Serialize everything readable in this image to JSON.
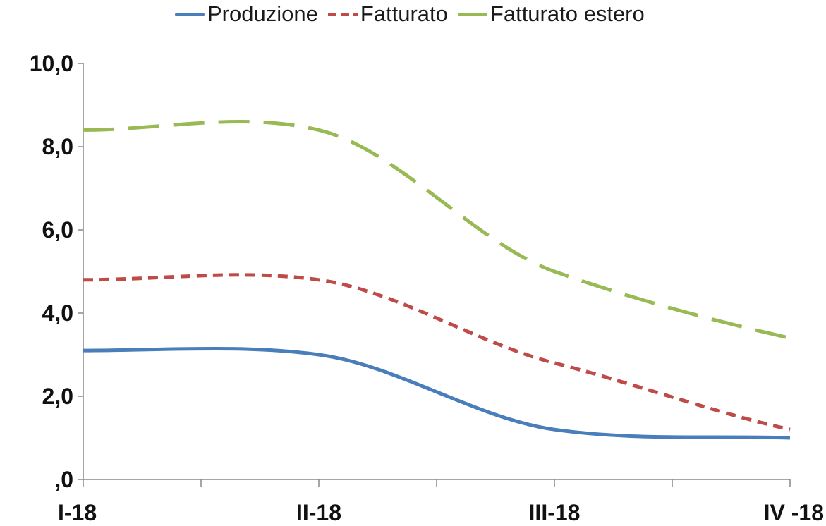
{
  "chart_data": {
    "type": "line",
    "categories": [
      "I-18",
      "II-18",
      "III-18",
      "IV -18"
    ],
    "y_tick_labels": [
      ",0",
      "2,0",
      "4,0",
      "6,0",
      "8,0",
      "10,0"
    ],
    "ylim": [
      0,
      10
    ],
    "grid": false,
    "legend_position": "top",
    "series": [
      {
        "name": "Produzione",
        "values": [
          3.1,
          3.0,
          1.2,
          1.0
        ],
        "color": "#4a7ebb",
        "style": "solid"
      },
      {
        "name": "Fatturato",
        "values": [
          4.8,
          4.8,
          2.8,
          1.2
        ],
        "color": "#be4b48",
        "style": "dashed"
      },
      {
        "name": "Fatturato estero",
        "values": [
          8.4,
          8.4,
          5.0,
          3.4
        ],
        "color": "#98b954",
        "style": "long-dashed"
      }
    ]
  }
}
